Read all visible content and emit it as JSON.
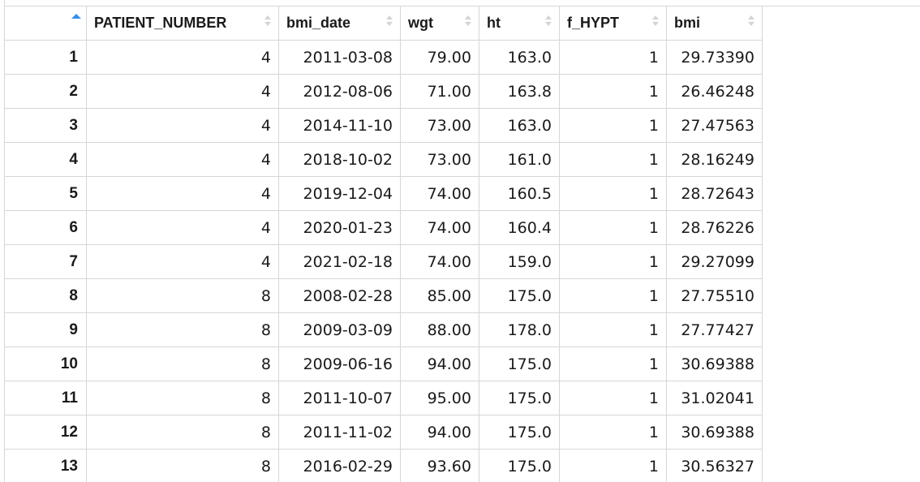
{
  "table": {
    "active_sort_icon": "sort-ascending-icon",
    "columns": [
      {
        "label": "PATIENT_NUMBER",
        "sort_icon": "sort-icon"
      },
      {
        "label": "bmi_date",
        "sort_icon": "sort-icon"
      },
      {
        "label": "wgt",
        "sort_icon": "sort-icon"
      },
      {
        "label": "ht",
        "sort_icon": "sort-icon"
      },
      {
        "label": "f_HYPT",
        "sort_icon": "sort-icon"
      },
      {
        "label": "bmi",
        "sort_icon": "sort-icon"
      }
    ],
    "rows": [
      {
        "n": "1",
        "cells": [
          "4",
          "2011-03-08",
          "79.00",
          "163.0",
          "1",
          "29.73390"
        ]
      },
      {
        "n": "2",
        "cells": [
          "4",
          "2012-08-06",
          "71.00",
          "163.8",
          "1",
          "26.46248"
        ]
      },
      {
        "n": "3",
        "cells": [
          "4",
          "2014-11-10",
          "73.00",
          "163.0",
          "1",
          "27.47563"
        ]
      },
      {
        "n": "4",
        "cells": [
          "4",
          "2018-10-02",
          "73.00",
          "161.0",
          "1",
          "28.16249"
        ]
      },
      {
        "n": "5",
        "cells": [
          "4",
          "2019-12-04",
          "74.00",
          "160.5",
          "1",
          "28.72643"
        ]
      },
      {
        "n": "6",
        "cells": [
          "4",
          "2020-01-23",
          "74.00",
          "160.4",
          "1",
          "28.76226"
        ]
      },
      {
        "n": "7",
        "cells": [
          "4",
          "2021-02-18",
          "74.00",
          "159.0",
          "1",
          "29.27099"
        ]
      },
      {
        "n": "8",
        "cells": [
          "8",
          "2008-02-28",
          "85.00",
          "175.0",
          "1",
          "27.75510"
        ]
      },
      {
        "n": "9",
        "cells": [
          "8",
          "2009-03-09",
          "88.00",
          "178.0",
          "1",
          "27.77427"
        ]
      },
      {
        "n": "10",
        "cells": [
          "8",
          "2009-06-16",
          "94.00",
          "175.0",
          "1",
          "30.69388"
        ]
      },
      {
        "n": "11",
        "cells": [
          "8",
          "2011-10-07",
          "95.00",
          "175.0",
          "1",
          "31.02041"
        ]
      },
      {
        "n": "12",
        "cells": [
          "8",
          "2011-11-02",
          "94.00",
          "175.0",
          "1",
          "30.69388"
        ]
      },
      {
        "n": "13",
        "cells": [
          "8",
          "2016-02-29",
          "93.60",
          "175.0",
          "1",
          "30.56327"
        ]
      }
    ]
  }
}
